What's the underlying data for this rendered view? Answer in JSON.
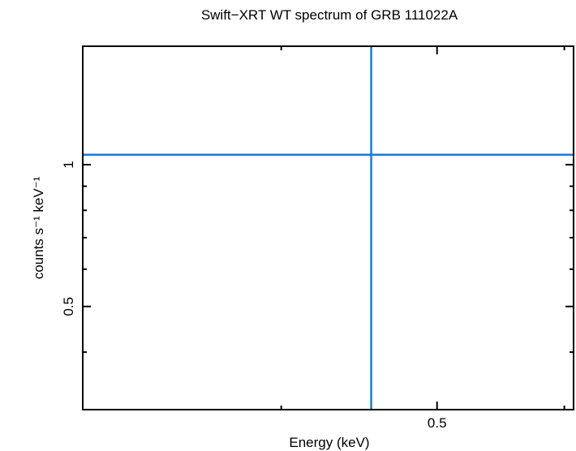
{
  "chart_data": {
    "type": "scatter",
    "title": "Swift−XRT WT spectrum of GRB 111022A",
    "xlabel": "Energy (keV)",
    "ylabel": "counts s⁻¹ keV⁻¹",
    "xscale": "log",
    "yscale": "log",
    "xlim": [
      0.301,
      0.608
    ],
    "ylim": [
      0.302,
      1.784
    ],
    "xticks": [
      0.5
    ],
    "xticks_minor": [
      0.4,
      0.6
    ],
    "yticks": [
      0.5,
      1
    ],
    "yticks_minor": [
      0.4,
      0.6,
      0.7,
      0.8,
      0.9
    ],
    "color": "#1a7adc",
    "series": [
      {
        "x": [
          0.455
        ],
        "values": [
          1.05
        ],
        "xerr": [
          0.155
        ],
        "yerr": [
          0.75
        ]
      }
    ]
  }
}
